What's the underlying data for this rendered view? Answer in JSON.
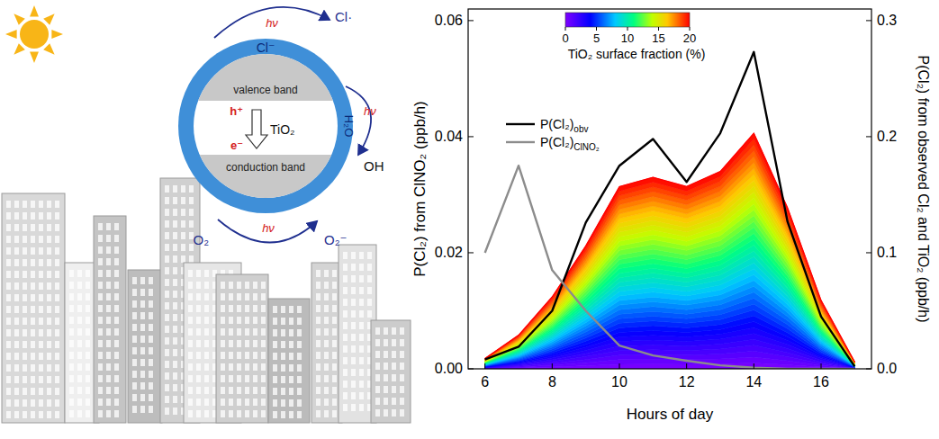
{
  "chart_data": {
    "type": "line",
    "x_label": "Hours of day",
    "y_label": "P(Cl₂) from ClNO₂ (ppb/h)",
    "y2_label": "P(Cl₂) from observed Cl₂ and TiO₂ (ppb/h)",
    "x": [
      6,
      7,
      8,
      9,
      10,
      11,
      12,
      13,
      14,
      15,
      16,
      17
    ],
    "xlim": [
      5.5,
      17.5
    ],
    "xticks": [
      6,
      8,
      10,
      12,
      14,
      16
    ],
    "ylim": [
      0,
      0.062
    ],
    "yticks": [
      {
        "value": 0,
        "label": "0.00"
      },
      {
        "value": 0.02,
        "label": "0.02"
      },
      {
        "value": 0.04,
        "label": "0.04"
      },
      {
        "value": 0.06,
        "label": "0.06"
      }
    ],
    "y2lim": [
      0,
      0.31
    ],
    "y2ticks": [
      {
        "value": 0,
        "label": "0.0"
      },
      {
        "value": 0.1,
        "label": "0.1"
      },
      {
        "value": 0.2,
        "label": "0.2"
      },
      {
        "value": 0.3,
        "label": "0.3"
      }
    ],
    "series": [
      {
        "name": "P(Cl₂)obv",
        "color": "#000000",
        "axis": "y2",
        "values": [
          0.008,
          0.019,
          0.05,
          0.126,
          0.175,
          0.198,
          0.161,
          0.203,
          0.273,
          0.127,
          0.045,
          0.002
        ]
      },
      {
        "name": "P(Cl₂)ClNO₂",
        "color": "#8c8c8c",
        "axis": "y",
        "values": [
          0.02,
          0.035,
          0.017,
          0.01,
          0.004,
          0.0023,
          0.0014,
          0.0006,
          0.0002,
          0,
          0,
          0
        ]
      },
      {
        "type": "area",
        "axis": "y2",
        "values": [
          0.009,
          0.029,
          0.062,
          0.106,
          0.157,
          0.165,
          0.157,
          0.17,
          0.203,
          0.139,
          0.059,
          0.006
        ]
      }
    ],
    "colorbar": {
      "title": "TiO₂ surface fraction (%)",
      "range": [
        0,
        20
      ],
      "ticks": [
        0,
        5,
        10,
        15,
        20
      ]
    },
    "legend": "upper left",
    "grid": false
  },
  "illustration": {
    "ring_label": "Cl⁻",
    "valence_band": "valence band",
    "hole": "h⁺",
    "electron": "e⁻",
    "particle": "TiO₂",
    "conduction_band": "conduction band",
    "water": "H₂O",
    "top_light": "hν",
    "top_product": "Cl·",
    "right_light": "hν",
    "right_product": "OH",
    "bottom_light": "hν",
    "bottom_reactant": "O₂",
    "bottom_product": "O₂⁻"
  }
}
